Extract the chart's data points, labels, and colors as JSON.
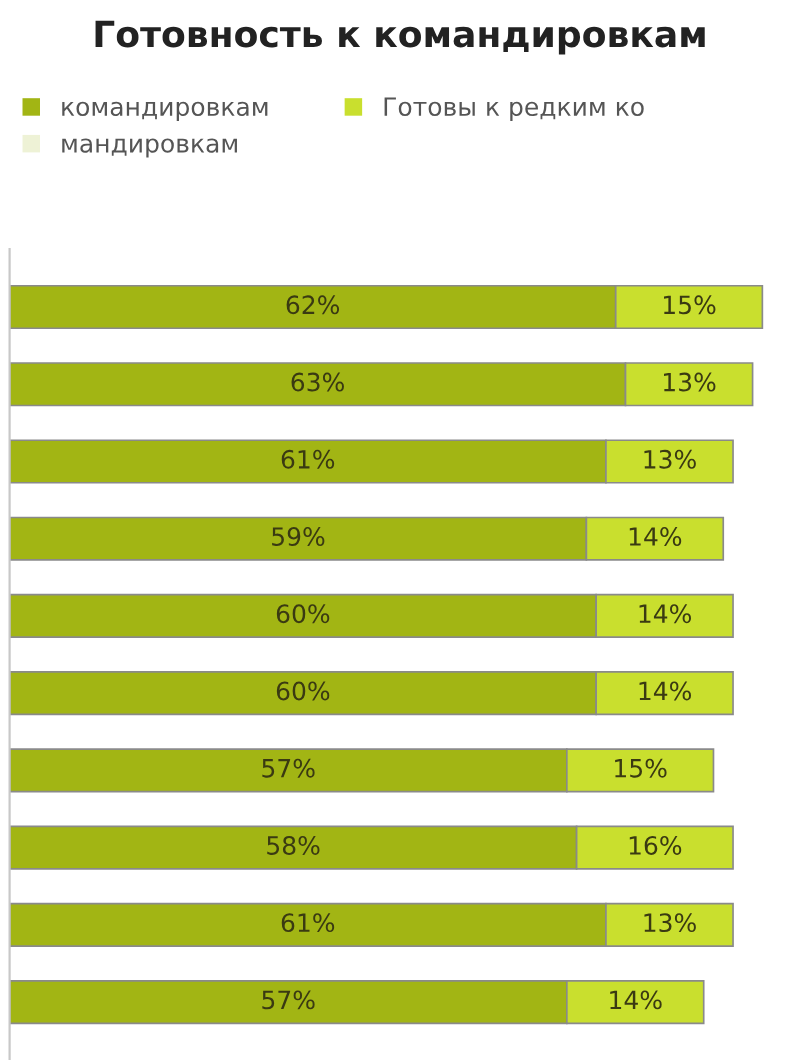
{
  "chart_data": {
    "type": "bar",
    "orientation": "horizontal",
    "stacked": true,
    "title": "Готовность к командировкам",
    "categories": [
      null,
      null,
      null,
      null,
      null,
      null,
      null,
      null,
      null,
      null
    ],
    "series": [
      {
        "name": "командировкам",
        "color": "#a2b514",
        "values": [
          62,
          63,
          61,
          59,
          60,
          60,
          57,
          58,
          61,
          57
        ],
        "value_labels": [
          "62%",
          "63%",
          "61%",
          "59%",
          "60%",
          "60%",
          "57%",
          "58%",
          "61%",
          "57%"
        ]
      },
      {
        "name": "Готовы к редким ко",
        "color": "#c9df2e",
        "values": [
          15,
          13,
          13,
          14,
          14,
          14,
          15,
          16,
          13,
          14
        ],
        "value_labels": [
          "15%",
          "13%",
          "13%",
          "14%",
          "14%",
          "14%",
          "15%",
          "16%",
          "13%",
          "14%"
        ]
      },
      {
        "name": "мандировкам",
        "color": "#eef2d6",
        "values": [
          null,
          null,
          null,
          null,
          null,
          null,
          null,
          null,
          null,
          null
        ]
      }
    ],
    "legend": "top",
    "grid": false
  }
}
